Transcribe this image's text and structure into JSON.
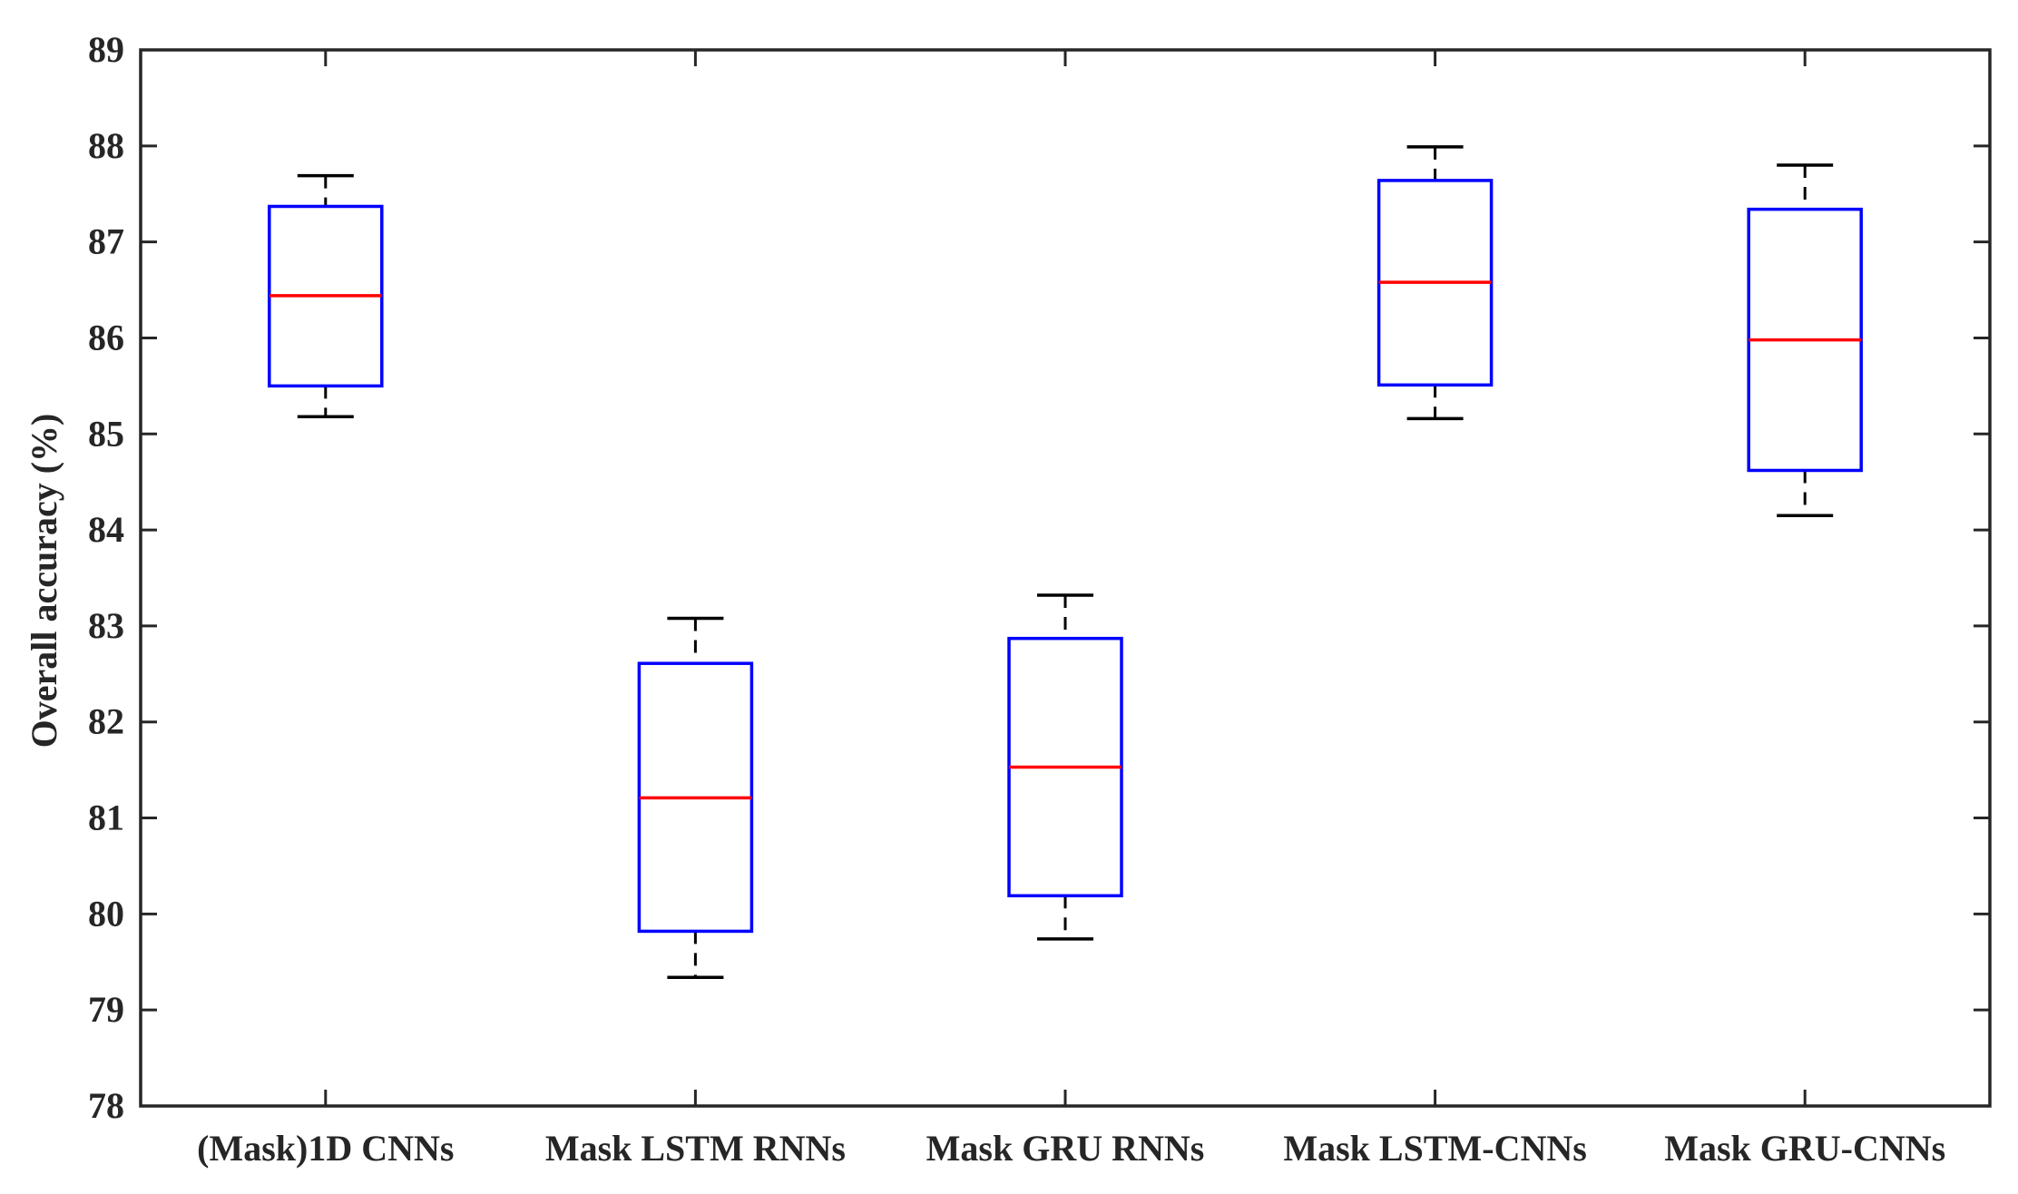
{
  "chart_data": {
    "type": "box",
    "title": "",
    "xlabel": "",
    "ylabel": "Overall accuracy (%)",
    "ylim": [
      78,
      89
    ],
    "yticks": [
      78,
      79,
      80,
      81,
      82,
      83,
      84,
      85,
      86,
      87,
      88,
      89
    ],
    "grid": false,
    "categories": [
      "(Mask)1D CNNs",
      "Mask LSTM RNNs",
      "Mask GRU RNNs",
      "Mask LSTM-CNNs",
      "Mask GRU-CNNs"
    ],
    "boxes": [
      {
        "category": "(Mask)1D CNNs",
        "min": 85.18,
        "q1": 85.5,
        "median": 86.44,
        "q3": 87.37,
        "max": 87.69
      },
      {
        "category": "Mask LSTM RNNs",
        "min": 79.34,
        "q1": 79.82,
        "median": 81.21,
        "q3": 82.61,
        "max": 83.08
      },
      {
        "category": "Mask GRU RNNs",
        "min": 79.74,
        "q1": 80.19,
        "median": 81.53,
        "q3": 82.87,
        "max": 83.32
      },
      {
        "category": "Mask LSTM-CNNs",
        "min": 85.16,
        "q1": 85.51,
        "median": 86.58,
        "q3": 87.64,
        "max": 87.99
      },
      {
        "category": "Mask GRU-CNNs",
        "min": 84.15,
        "q1": 84.62,
        "median": 85.98,
        "q3": 87.34,
        "max": 87.8
      }
    ],
    "colors": {
      "box": "#0000ff",
      "median": "#ff0000",
      "whisker": "#000000",
      "axis": "#262626"
    }
  }
}
